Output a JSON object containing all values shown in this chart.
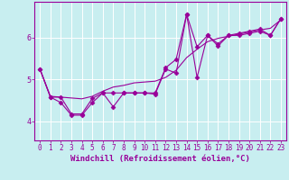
{
  "xlabel": "Windchill (Refroidissement éolien,°C)",
  "ylabel": "",
  "background_color": "#c8eef0",
  "line_color": "#990099",
  "xlim": [
    -0.5,
    23.5
  ],
  "ylim": [
    3.55,
    6.85
  ],
  "xticks": [
    0,
    1,
    2,
    3,
    4,
    5,
    6,
    7,
    8,
    9,
    10,
    11,
    12,
    13,
    14,
    15,
    16,
    17,
    18,
    19,
    20,
    21,
    22,
    23
  ],
  "yticks": [
    4,
    5,
    6
  ],
  "grid_color": "#aadddd",
  "line1_x": [
    0,
    1,
    2,
    3,
    4,
    5,
    6,
    7,
    8,
    9,
    10,
    11,
    12,
    13,
    14,
    15,
    16,
    17,
    18,
    19,
    20,
    21,
    22,
    23
  ],
  "line1_y": [
    5.25,
    4.58,
    4.58,
    4.18,
    4.18,
    4.55,
    4.68,
    4.35,
    4.68,
    4.68,
    4.68,
    4.65,
    5.25,
    5.15,
    6.55,
    5.05,
    6.05,
    5.8,
    6.05,
    6.1,
    6.15,
    6.2,
    6.05,
    6.45
  ],
  "line2_x": [
    0,
    1,
    2,
    3,
    4,
    5,
    6,
    7,
    8,
    9,
    10,
    11,
    12,
    13,
    14,
    15,
    16,
    17,
    18,
    19,
    20,
    21,
    22,
    23
  ],
  "line2_y": [
    5.25,
    4.58,
    4.45,
    4.15,
    4.15,
    4.45,
    4.68,
    4.68,
    4.68,
    4.68,
    4.68,
    4.68,
    5.28,
    5.48,
    6.55,
    5.78,
    6.05,
    5.85,
    6.05,
    6.05,
    6.1,
    6.15,
    6.05,
    6.45
  ],
  "line3_x": [
    0,
    1,
    2,
    3,
    4,
    5,
    6,
    7,
    8,
    9,
    10,
    11,
    12,
    13,
    14,
    15,
    16,
    17,
    18,
    19,
    20,
    21,
    22,
    23
  ],
  "line3_y": [
    5.25,
    4.6,
    4.58,
    4.56,
    4.54,
    4.6,
    4.72,
    4.82,
    4.86,
    4.92,
    4.94,
    4.96,
    5.05,
    5.22,
    5.52,
    5.72,
    5.9,
    5.98,
    6.03,
    6.08,
    6.13,
    6.18,
    6.22,
    6.42
  ],
  "marker": "D",
  "marker_size": 2.5,
  "line_width": 0.8,
  "tick_fontsize": 5.5,
  "label_fontsize": 6.5
}
